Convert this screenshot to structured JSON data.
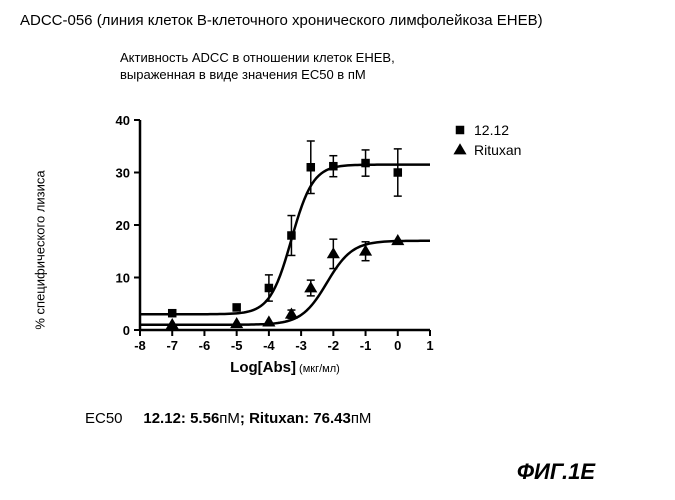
{
  "title": "ADCC-056 (линия клеток В-клеточного хронического лимфолейкоза EHEB)",
  "subtitle": "Активность ADCC в отношении клеток EHEB,\nвыраженная в виде значения EC50 в пМ",
  "chart": {
    "type": "scatter-line",
    "xlim": [
      -8,
      1
    ],
    "ylim": [
      0,
      40
    ],
    "xtick_step": 1,
    "ytick_step": 10,
    "xlabel_main": "Log[Abs]",
    "xlabel_unit": " (мкг/мл)",
    "ylabel": "% специфического лизиса",
    "background_color": "#ffffff",
    "axis_color": "#000000",
    "line_width": 2,
    "marker_size": 6,
    "tick_fontsize": 13,
    "label_fontsize": 13,
    "series": [
      {
        "name": "12.12",
        "marker": "square",
        "color": "#000000",
        "x": [
          -7,
          -5,
          -4,
          -3.3,
          -2.7,
          -2,
          -1,
          0
        ],
        "y": [
          3.2,
          4.3,
          8.0,
          18.0,
          31.0,
          31.2,
          31.8,
          30.0
        ],
        "err": [
          0,
          0,
          2.5,
          3.8,
          5.0,
          2.0,
          2.5,
          4.5
        ]
      },
      {
        "name": "Rituxan",
        "marker": "triangle",
        "color": "#000000",
        "x": [
          -7,
          -5,
          -4,
          -3.3,
          -2.7,
          -2,
          -1,
          0
        ],
        "y": [
          1.0,
          1.2,
          1.5,
          3.0,
          8.0,
          14.5,
          15.0,
          17.0
        ],
        "err": [
          0,
          0,
          0,
          0.8,
          1.5,
          2.8,
          1.8,
          0
        ]
      }
    ]
  },
  "ec50": {
    "label": "EC50",
    "s1_name": "12.12:",
    "s1_val": "5.56",
    "s1_unit": "пМ",
    "sep": "; ",
    "s2_name": "Rituxan:",
    "s2_val": "76.43",
    "s2_unit": "пМ"
  },
  "figure_label": "ФИГ.1E"
}
